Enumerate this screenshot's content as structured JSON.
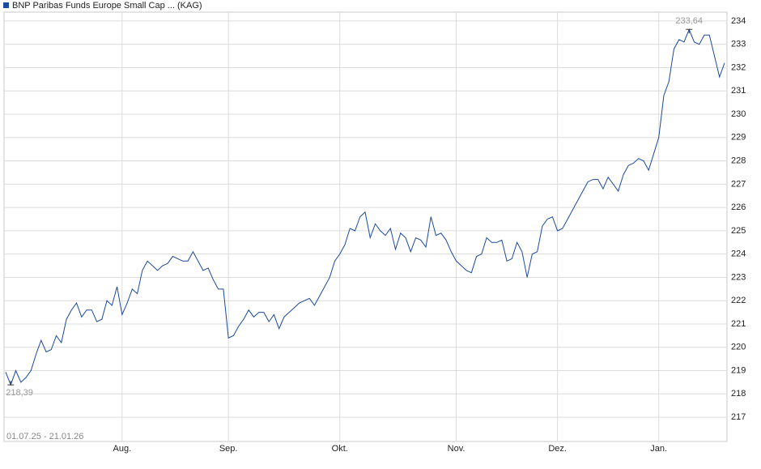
{
  "chart_data": {
    "type": "line",
    "series": [
      {
        "name": "BNP Paribas Funds Europe Small Cap ... (KAG)",
        "color": "#1a4a9c",
        "values": [
          218.94,
          218.39,
          219.0,
          218.5,
          218.7,
          219.0,
          219.7,
          220.3,
          219.8,
          219.9,
          220.5,
          220.2,
          221.2,
          221.6,
          221.9,
          221.3,
          221.6,
          221.6,
          221.1,
          221.2,
          222.0,
          221.8,
          222.6,
          221.4,
          221.9,
          222.5,
          222.3,
          223.3,
          223.7,
          223.5,
          223.3,
          223.5,
          223.6,
          223.9,
          223.8,
          223.7,
          223.7,
          224.1,
          223.7,
          223.3,
          223.4,
          222.9,
          222.5,
          222.5,
          220.4,
          220.5,
          220.9,
          221.2,
          221.6,
          221.3,
          221.5,
          221.5,
          221.1,
          221.4,
          220.8,
          221.3,
          221.5,
          221.7,
          221.9,
          222.0,
          222.1,
          221.8,
          222.2,
          222.6,
          223.0,
          223.7,
          224.0,
          224.4,
          225.1,
          225.0,
          225.6,
          225.8,
          224.7,
          225.3,
          225.0,
          224.8,
          225.1,
          224.2,
          224.9,
          224.7,
          224.1,
          224.7,
          224.6,
          224.3,
          225.6,
          224.8,
          224.9,
          224.6,
          224.1,
          223.7,
          223.5,
          223.3,
          223.2,
          223.9,
          224.0,
          224.7,
          224.5,
          224.5,
          224.6,
          223.7,
          223.8,
          224.5,
          224.1,
          223.0,
          224.0,
          224.1,
          225.2,
          225.5,
          225.6,
          225.0,
          225.1,
          225.5,
          225.9,
          226.3,
          226.7,
          227.1,
          227.2,
          227.2,
          226.8,
          227.3,
          227.0,
          226.7,
          227.4,
          227.8,
          227.9,
          228.1,
          228.0,
          227.6,
          228.3,
          229.0,
          230.8,
          231.4,
          232.8,
          233.2,
          233.1,
          233.64,
          233.1,
          233.0,
          233.4,
          233.4,
          232.5,
          231.6,
          232.2
        ]
      }
    ],
    "xlim": [
      0,
      142
    ],
    "xticks": [
      {
        "value": 23,
        "label": "Aug."
      },
      {
        "value": 44,
        "label": "Sep."
      },
      {
        "value": 66,
        "label": "Okt."
      },
      {
        "value": 89,
        "label": "Nov."
      },
      {
        "value": 109,
        "label": "Dez."
      },
      {
        "value": 129,
        "label": "Jan."
      }
    ],
    "ylim": [
      215.96,
      234.38
    ],
    "yticks": [
      217,
      218,
      219,
      220,
      221,
      222,
      223,
      224,
      225,
      226,
      227,
      228,
      229,
      230,
      231,
      232,
      233,
      234
    ],
    "grid": true,
    "date_range": "01.07.25 - 21.01.26",
    "annotations": [
      {
        "index": 135,
        "value": 233.64,
        "label": "233,64"
      },
      {
        "index": 1,
        "value": 218.39,
        "label": "218,39"
      }
    ]
  }
}
